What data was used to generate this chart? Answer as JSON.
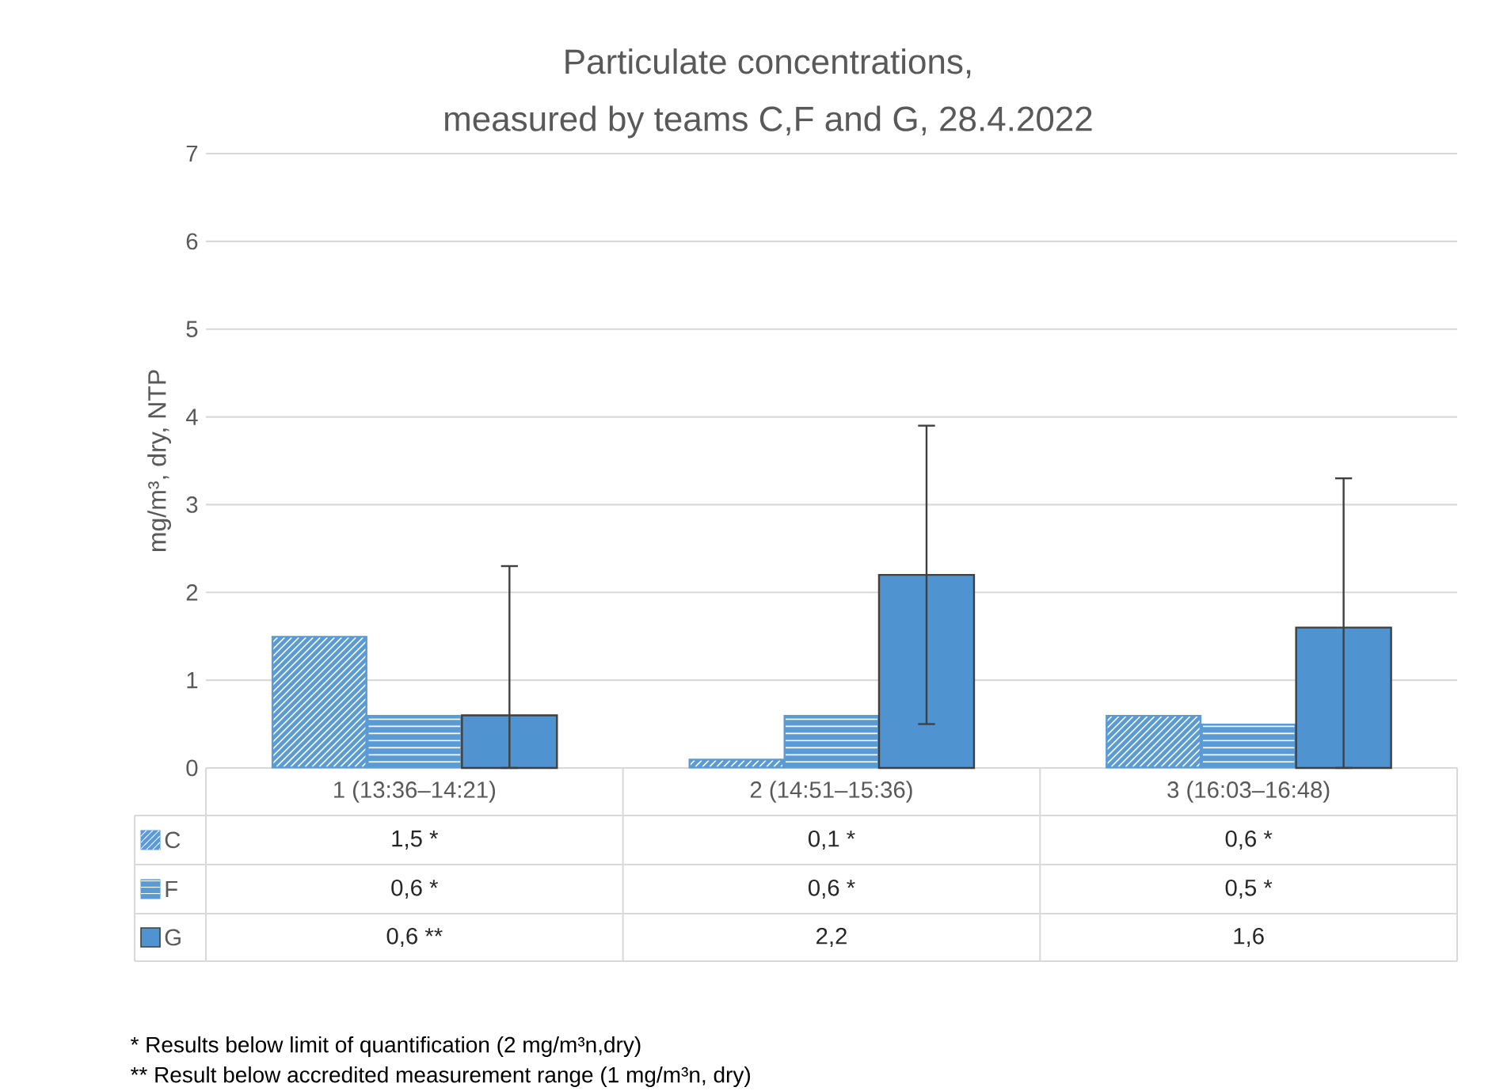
{
  "chart_data": {
    "type": "bar",
    "title": "Particulate concentrations,",
    "subtitle": "measured by teams C,F and G, 28.4.2022",
    "ylabel": "mg/m³, dry, NTP",
    "categories": [
      "1 (13:36–14:21)",
      "2 (14:51–15:36)",
      "3 (16:03–16:48)"
    ],
    "series": [
      {
        "name": "C",
        "color": "#5b9bd5",
        "values": [
          1.5,
          0.1,
          0.6
        ],
        "value_labels": [
          "1,5 *",
          "0,1 *",
          "0,6 *"
        ]
      },
      {
        "name": "F",
        "color": "#5b9bd5",
        "values": [
          0.6,
          0.6,
          0.5
        ],
        "value_labels": [
          "0,6 *",
          "0,6 *",
          "0,5 *"
        ]
      },
      {
        "name": "G",
        "color": "#4f93d0",
        "values": [
          0.6,
          2.2,
          1.6
        ],
        "errors": [
          [
            0,
            2.3
          ],
          [
            0.5,
            3.9
          ],
          [
            0,
            3.3
          ]
        ],
        "value_labels": [
          "0,6 **",
          "2,2",
          "1,6"
        ]
      }
    ],
    "ylim": [
      0,
      7
    ],
    "yticks": [
      0,
      1,
      2,
      3,
      4,
      5,
      6,
      7
    ],
    "grid": "y",
    "legend": "bottom",
    "annotations": [
      "* Results below  limit of quantification (2 mg/m³n,dry)",
      "** Result below accredited measurement range (1 mg/m³n, dry)"
    ]
  }
}
